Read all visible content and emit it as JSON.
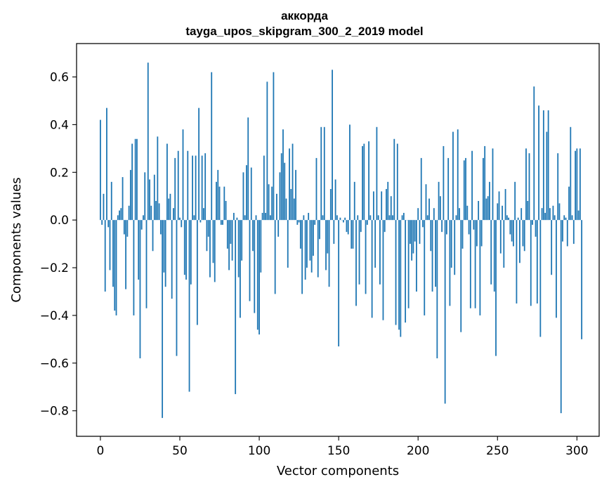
{
  "chart_data": {
    "type": "bar",
    "title": "аккорда",
    "subtitle": "tayga_upos_skipgram_300_2_2019 model",
    "xlabel": "Vector components",
    "ylabel": "Components values",
    "xlim": [
      -15,
      314
    ],
    "ylim": [
      -0.907,
      0.74
    ],
    "xticks": [
      0,
      50,
      100,
      150,
      200,
      250,
      300
    ],
    "yticks": [
      -0.8,
      -0.6,
      -0.4,
      -0.2,
      0.0,
      0.2,
      0.4,
      0.6
    ],
    "ytick_labels": [
      "−0.8",
      "−0.6",
      "−0.4",
      "−0.2",
      "0.0",
      "0.2",
      "0.4",
      "0.6"
    ],
    "bar_color": "#1f77b4",
    "grid": false,
    "series": [
      {
        "name": "аккорда",
        "values": [
          0.42,
          -0.02,
          0.11,
          -0.3,
          0.47,
          -0.03,
          -0.21,
          0.16,
          -0.28,
          -0.38,
          -0.4,
          0.02,
          0.04,
          0.05,
          0.18,
          -0.06,
          -0.29,
          -0.07,
          0.06,
          0.21,
          0.32,
          -0.4,
          0.34,
          0.34,
          -0.25,
          -0.58,
          -0.04,
          0.02,
          0.2,
          -0.37,
          0.66,
          0.17,
          0.06,
          -0.13,
          0.19,
          0.08,
          0.35,
          0.07,
          -0.06,
          -0.83,
          -0.22,
          -0.28,
          0.32,
          0.09,
          0.11,
          -0.33,
          0.05,
          0.26,
          -0.57,
          0.29,
          0.01,
          -0.03,
          0.38,
          -0.23,
          -0.25,
          0.29,
          -0.72,
          -0.27,
          0.27,
          0.02,
          0.27,
          -0.44,
          0.47,
          -0.01,
          0.27,
          0.05,
          0.28,
          -0.13,
          -0.07,
          -0.24,
          0.62,
          -0.18,
          -0.26,
          0.16,
          0.21,
          0.14,
          -0.02,
          -0.02,
          0.14,
          0.08,
          -0.12,
          -0.21,
          -0.1,
          -0.17,
          0.03,
          -0.73,
          0.01,
          -0.24,
          -0.41,
          -0.17,
          0.2,
          0.02,
          0.23,
          0.43,
          -0.34,
          0.22,
          -0.13,
          -0.39,
          0.02,
          -0.46,
          -0.48,
          -0.22,
          0.03,
          0.27,
          0.03,
          0.58,
          0.15,
          0.02,
          0.14,
          0.62,
          -0.31,
          0.11,
          -0.07,
          0.2,
          0.28,
          0.38,
          0.24,
          0.09,
          -0.2,
          0.3,
          0.13,
          0.32,
          0.09,
          0.21,
          -0.02,
          -0.01,
          -0.12,
          -0.31,
          0.02,
          -0.25,
          -0.2,
          0.03,
          -0.17,
          -0.22,
          -0.15,
          -0.02,
          0.26,
          -0.24,
          -0.08,
          0.39,
          0.02,
          0.39,
          -0.21,
          -0.14,
          -0.28,
          0.13,
          0.63,
          -0.1,
          0.17,
          0.02,
          -0.53,
          0.01,
          0.0,
          -0.01,
          0.01,
          -0.05,
          -0.06,
          0.4,
          -0.12,
          -0.12,
          0.16,
          -0.36,
          0.02,
          -0.27,
          -0.05,
          0.31,
          0.32,
          -0.31,
          -0.02,
          0.33,
          0.02,
          -0.41,
          0.12,
          -0.2,
          0.39,
          0.02,
          -0.27,
          0.12,
          -0.42,
          -0.05,
          0.13,
          0.16,
          0.02,
          0.1,
          0.02,
          0.34,
          -0.44,
          0.32,
          -0.46,
          -0.49,
          0.02,
          0.03,
          -0.43,
          0.0,
          -0.37,
          -0.1,
          -0.17,
          -0.14,
          -0.09,
          -0.3,
          0.05,
          -0.1,
          0.26,
          -0.03,
          -0.4,
          0.15,
          0.02,
          0.09,
          -0.13,
          -0.3,
          0.05,
          -0.28,
          -0.58,
          0.16,
          0.1,
          -0.05,
          0.31,
          -0.77,
          -0.06,
          0.26,
          -0.36,
          -0.2,
          0.37,
          -0.23,
          0.02,
          0.38,
          0.05,
          -0.47,
          -0.12,
          0.25,
          0.26,
          0.06,
          -0.06,
          -0.37,
          0.29,
          -0.04,
          -0.37,
          -0.11,
          0.08,
          -0.4,
          -0.11,
          0.26,
          0.31,
          0.09,
          0.1,
          0.16,
          -0.27,
          0.3,
          -0.3,
          -0.57,
          0.07,
          0.12,
          -0.14,
          0.06,
          -0.2,
          0.13,
          0.02,
          0.01,
          -0.06,
          -0.09,
          -0.11,
          0.16,
          -0.35,
          0.01,
          -0.18,
          0.05,
          -0.11,
          -0.13,
          0.3,
          0.08,
          0.28,
          -0.36,
          -0.02,
          0.56,
          -0.07,
          -0.35,
          0.48,
          -0.49,
          0.05,
          0.46,
          0.03,
          0.37,
          0.46,
          0.05,
          -0.23,
          0.06,
          0.02,
          -0.41,
          0.28,
          0.07,
          -0.81,
          -0.09,
          0.02,
          0.01,
          -0.11,
          0.14,
          0.39,
          0.02,
          -0.1,
          0.29,
          0.3,
          0.04,
          0.3,
          -0.5
        ]
      }
    ]
  }
}
